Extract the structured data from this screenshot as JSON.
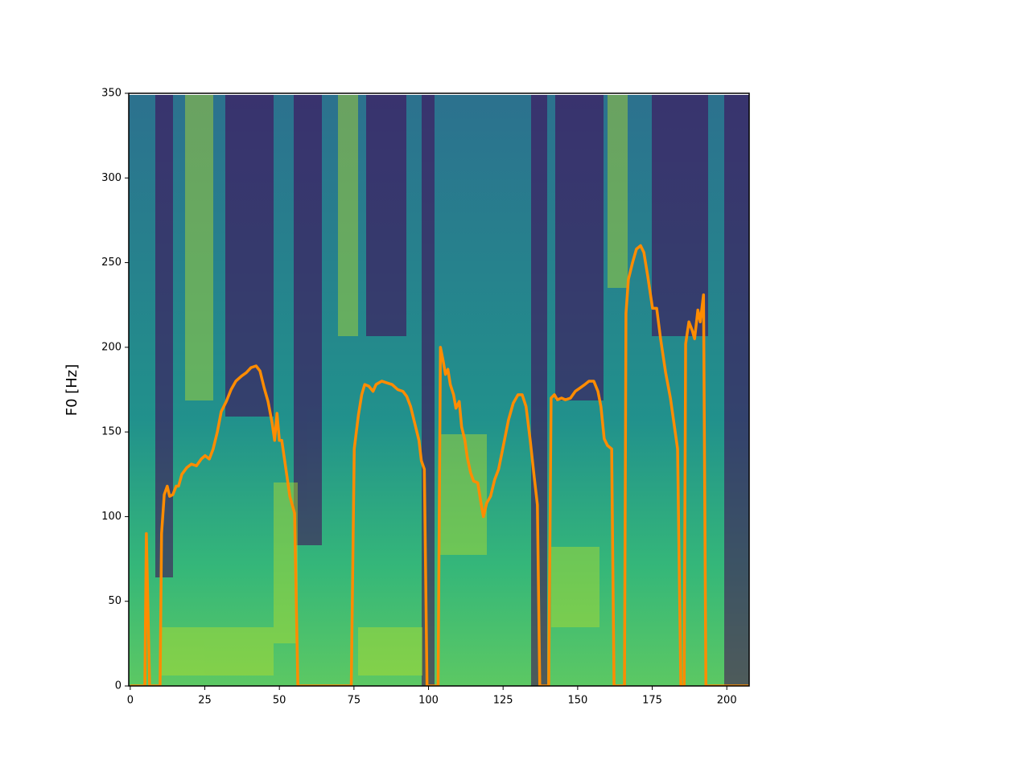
{
  "chart_data": {
    "type": "line",
    "ylabel": "F0 [Hz]",
    "x": [
      0,
      4.9,
      5.4,
      6.5,
      10,
      10.5,
      11.4,
      12.4,
      13.2,
      14.3,
      15.4,
      16.2,
      17.3,
      19,
      20.5,
      22.2,
      23.8,
      25.1,
      26.5,
      27.8,
      29.2,
      30.5,
      32.2,
      33.8,
      35.4,
      37.3,
      38.9,
      40.5,
      42.2,
      43.5,
      44.9,
      46.2,
      47.6,
      48.4,
      49.2,
      50,
      50.8,
      52.2,
      53.5,
      55.1,
      56.2,
      74.1,
      75.1,
      76.5,
      77.6,
      78.6,
      80,
      81.4,
      82.4,
      84.3,
      86,
      87.8,
      89.7,
      91.4,
      92.7,
      94,
      95.4,
      96.8,
      97.6,
      98.6,
      99.5,
      103.2,
      104,
      104.9,
      105.7,
      106.5,
      107.3,
      108.4,
      109.2,
      110.3,
      111.1,
      112.2,
      113,
      114.1,
      115.1,
      116.5,
      117.6,
      118.4,
      119.5,
      120.8,
      122.2,
      123.5,
      125.1,
      126.8,
      128.4,
      130,
      131.4,
      132.7,
      134.1,
      135.4,
      136.5,
      137.3,
      140.3,
      141.1,
      142.2,
      143.2,
      144.6,
      145.9,
      147.6,
      149.2,
      150.8,
      152.4,
      153.8,
      155.4,
      156.8,
      157.8,
      158.9,
      160,
      161.4,
      162.2,
      165.7,
      166.2,
      167,
      168.4,
      169.7,
      171.1,
      172.2,
      173.5,
      175.1,
      176.5,
      177.8,
      179.5,
      181.1,
      182.7,
      183.5,
      184.6,
      185.7,
      186.2,
      187.3,
      188.4,
      189.2,
      190.3,
      191.1,
      192.2,
      193,
      207.5
    ],
    "values": [
      0,
      0,
      90,
      0,
      0,
      90,
      113,
      118,
      112,
      113,
      118,
      118,
      125,
      129,
      131,
      130,
      134,
      136,
      134,
      140,
      150,
      162,
      168,
      175,
      180,
      183,
      185,
      188,
      189,
      186,
      176,
      168,
      155,
      145,
      161,
      145,
      145,
      128,
      112,
      102,
      0,
      0,
      140,
      160,
      172,
      178,
      177,
      174,
      178,
      180,
      179,
      178,
      175,
      174,
      171,
      165,
      155,
      145,
      133,
      128,
      0,
      0,
      200,
      192,
      184,
      187,
      178,
      172,
      164,
      168,
      153,
      145,
      135,
      126,
      121,
      120,
      108,
      100,
      108,
      112,
      122,
      128,
      142,
      157,
      167,
      172,
      172,
      165,
      145,
      124,
      107,
      0,
      0,
      170,
      172,
      169,
      170,
      169,
      170,
      174,
      176,
      178,
      180,
      180,
      174,
      165,
      146,
      142,
      140,
      0,
      0,
      220,
      240,
      250,
      258,
      260,
      256,
      242,
      223,
      223,
      205,
      185,
      170,
      150,
      140,
      0,
      0,
      202,
      215,
      210,
      205,
      222,
      215,
      231,
      0,
      0
    ],
    "color": "#ff8c00",
    "xlim": [
      -0.5,
      207.5
    ],
    "xticks": [
      0,
      25,
      50,
      75,
      100,
      125,
      150,
      175,
      200
    ],
    "ylim": [
      0,
      350
    ],
    "yticks": [
      0,
      50,
      100,
      150,
      200,
      250,
      300,
      350
    ]
  }
}
